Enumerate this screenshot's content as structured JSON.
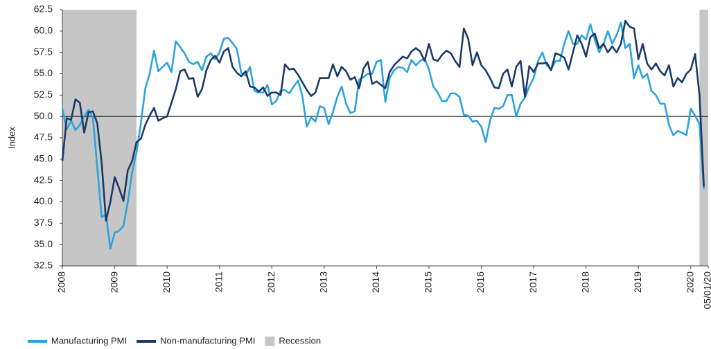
{
  "chart_data": {
    "type": "line",
    "y_label": "Index",
    "x": [
      "2008-01",
      "2008-02",
      "2008-03",
      "2008-04",
      "2008-05",
      "2008-06",
      "2008-07",
      "2008-08",
      "2008-09",
      "2008-10",
      "2008-11",
      "2008-12",
      "2009-01",
      "2009-02",
      "2009-03",
      "2009-04",
      "2009-05",
      "2009-06",
      "2009-07",
      "2009-08",
      "2009-09",
      "2009-10",
      "2009-11",
      "2009-12",
      "2010-01",
      "2010-02",
      "2010-03",
      "2010-04",
      "2010-05",
      "2010-06",
      "2010-07",
      "2010-08",
      "2010-09",
      "2010-10",
      "2010-11",
      "2010-12",
      "2011-01",
      "2011-02",
      "2011-03",
      "2011-04",
      "2011-05",
      "2011-06",
      "2011-07",
      "2011-08",
      "2011-09",
      "2011-10",
      "2011-11",
      "2011-12",
      "2012-01",
      "2012-02",
      "2012-03",
      "2012-04",
      "2012-05",
      "2012-06",
      "2012-07",
      "2012-08",
      "2012-09",
      "2012-10",
      "2012-11",
      "2012-12",
      "2013-01",
      "2013-02",
      "2013-03",
      "2013-04",
      "2013-05",
      "2013-06",
      "2013-07",
      "2013-08",
      "2013-09",
      "2013-10",
      "2013-11",
      "2013-12",
      "2014-01",
      "2014-02",
      "2014-03",
      "2014-04",
      "2014-05",
      "2014-06",
      "2014-07",
      "2014-08",
      "2014-09",
      "2014-10",
      "2014-11",
      "2014-12",
      "2015-01",
      "2015-02",
      "2015-03",
      "2015-04",
      "2015-05",
      "2015-06",
      "2015-07",
      "2015-08",
      "2015-09",
      "2015-10",
      "2015-11",
      "2015-12",
      "2016-01",
      "2016-02",
      "2016-03",
      "2016-04",
      "2016-05",
      "2016-06",
      "2016-07",
      "2016-08",
      "2016-09",
      "2016-10",
      "2016-11",
      "2016-12",
      "2017-01",
      "2017-02",
      "2017-03",
      "2017-04",
      "2017-05",
      "2017-06",
      "2017-07",
      "2017-08",
      "2017-09",
      "2017-10",
      "2017-11",
      "2017-12",
      "2018-01",
      "2018-02",
      "2018-03",
      "2018-04",
      "2018-05",
      "2018-06",
      "2018-07",
      "2018-08",
      "2018-09",
      "2018-10",
      "2018-11",
      "2018-12",
      "2019-01",
      "2019-02",
      "2019-03",
      "2019-04",
      "2019-05",
      "2019-06",
      "2019-07",
      "2019-08",
      "2019-09",
      "2019-10",
      "2019-11",
      "2019-12",
      "2020-01",
      "2020-02",
      "2020-03",
      "2020-04"
    ],
    "series": [
      {
        "name": "Manufacturing PMI",
        "color": "#2ba3dc",
        "values": [
          50.9,
          48.5,
          49.5,
          48.4,
          49.0,
          50.0,
          50.8,
          49.8,
          44.0,
          38.2,
          38.5,
          34.5,
          36.4,
          36.6,
          37.2,
          40.0,
          43.5,
          45.8,
          49.2,
          53.3,
          55.0,
          57.7,
          55.3,
          55.8,
          56.3,
          55.2,
          58.8,
          58.1,
          57.4,
          56.4,
          56.1,
          56.4,
          55.4,
          57.0,
          57.4,
          56.7,
          57.5,
          59.1,
          59.2,
          58.6,
          57.9,
          55.1,
          54.8,
          55.8,
          53.0,
          52.8,
          52.8,
          53.7,
          51.4,
          51.8,
          53.0,
          53.1,
          52.7,
          53.5,
          54.2,
          52.4,
          48.8,
          49.9,
          49.4,
          51.2,
          51.0,
          49.1,
          50.5,
          52.3,
          53.5,
          51.5,
          50.4,
          50.6,
          54.3,
          54.6,
          55.0,
          55.0,
          56.4,
          56.6,
          51.7,
          54.5,
          55.4,
          55.8,
          55.7,
          55.2,
          56.6,
          56.0,
          56.5,
          56.8,
          55.5,
          53.5,
          52.8,
          51.8,
          51.8,
          52.7,
          52.7,
          52.3,
          50.2,
          50.1,
          49.4,
          49.5,
          48.8,
          47.0,
          49.5,
          51.0,
          50.9,
          51.2,
          52.5,
          52.5,
          50.0,
          51.5,
          52.2,
          53.5,
          54.5,
          56.5,
          57.5,
          56.0,
          55.5,
          56.5,
          56.5,
          58.5,
          60.0,
          58.5,
          58.5,
          59.5,
          59.0,
          60.8,
          59.0,
          57.5,
          58.5,
          60.0,
          58.5,
          59.5,
          61.0,
          58.0,
          58.5,
          54.5,
          56.0,
          54.5,
          55.0,
          53.0,
          52.5,
          51.5,
          51.5,
          49.0,
          47.8,
          48.3,
          48.1,
          47.8,
          50.9,
          50.1,
          49.1,
          41.5
        ]
      },
      {
        "name": "Non-manufacturing PMI",
        "color": "#1b3a66",
        "values": [
          44.8,
          49.8,
          49.6,
          52.0,
          51.6,
          48.1,
          50.5,
          50.6,
          49.2,
          44.6,
          37.8,
          40.0,
          42.9,
          41.6,
          40.1,
          43.7,
          44.8,
          47.0,
          47.4,
          49.0,
          50.1,
          51.0,
          49.5,
          49.8,
          50.0,
          51.6,
          53.2,
          55.3,
          55.5,
          54.4,
          54.5,
          52.3,
          53.2,
          55.4,
          56.6,
          57.1,
          56.3,
          57.6,
          58.0,
          55.8,
          55.1,
          54.7,
          55.3,
          53.5,
          53.4,
          52.9,
          53.4,
          52.4,
          52.8,
          52.8,
          52.5,
          56.1,
          55.5,
          55.6,
          54.9,
          54.0,
          53.1,
          52.4,
          52.8,
          54.5,
          54.5,
          54.5,
          56.1,
          54.7,
          55.8,
          55.3,
          54.3,
          54.6,
          53.3,
          55.6,
          56.4,
          53.8,
          54.1,
          53.7,
          53.3,
          55.2,
          56.0,
          56.5,
          57.0,
          56.8,
          57.6,
          58.0,
          57.6,
          56.5,
          58.5,
          56.7,
          56.5,
          57.2,
          57.7,
          57.4,
          56.5,
          55.8,
          60.3,
          59.1,
          56.0,
          57.5,
          56.0,
          55.4,
          54.5,
          53.4,
          53.3,
          55.0,
          55.5,
          53.5,
          55.8,
          56.5,
          52.3,
          55.9,
          55.2,
          56.2,
          56.2,
          56.3,
          55.4,
          57.4,
          57.2,
          56.9,
          55.5,
          57.5,
          59.5,
          58.5,
          57.0,
          59.3,
          59.7,
          58.0,
          58.5,
          57.5,
          58.2,
          57.5,
          58.5,
          61.2,
          60.5,
          60.3,
          56.7,
          58.5,
          56.2,
          55.5,
          56.2,
          55.3,
          54.8,
          56.0,
          53.5,
          54.5,
          54.0,
          55.0,
          55.5,
          57.3,
          52.5,
          41.8
        ]
      }
    ],
    "recession": {
      "name": "Recession",
      "color": "#c6c6c6",
      "ranges": [
        [
          "2008-01",
          "2009-06"
        ],
        [
          "2020-03",
          "2020-05"
        ]
      ]
    },
    "reference_line": 50,
    "xlim": [
      "2008-01",
      "2020-05"
    ],
    "xticks": [
      {
        "value": "2008-01",
        "label": "2008"
      },
      {
        "value": "2009-01",
        "label": "2009"
      },
      {
        "value": "2010-01",
        "label": "2010"
      },
      {
        "value": "2011-01",
        "label": "2011"
      },
      {
        "value": "2012-01",
        "label": "2012"
      },
      {
        "value": "2013-01",
        "label": "2013"
      },
      {
        "value": "2014-01",
        "label": "2014"
      },
      {
        "value": "2015-01",
        "label": "2015"
      },
      {
        "value": "2016-01",
        "label": "2016"
      },
      {
        "value": "2017-01",
        "label": "2017"
      },
      {
        "value": "2018-01",
        "label": "2018"
      },
      {
        "value": "2019-01",
        "label": "2019"
      },
      {
        "value": "2020-01",
        "label": "2020"
      },
      {
        "value": "2020-05",
        "label": "05/01/20"
      }
    ],
    "ylim": [
      32.5,
      62.5
    ],
    "yticks": [
      32.5,
      {
        "value": 35,
        "label": "35.0"
      },
      37.5,
      {
        "value": 40,
        "label": "40.0"
      },
      42.5,
      {
        "value": 45,
        "label": "45.0"
      },
      47.5,
      {
        "value": 50,
        "label": "50.0"
      },
      52.5,
      {
        "value": 55,
        "label": "55.0"
      },
      57.5,
      {
        "value": 60,
        "label": "60.0"
      },
      62.5
    ]
  }
}
